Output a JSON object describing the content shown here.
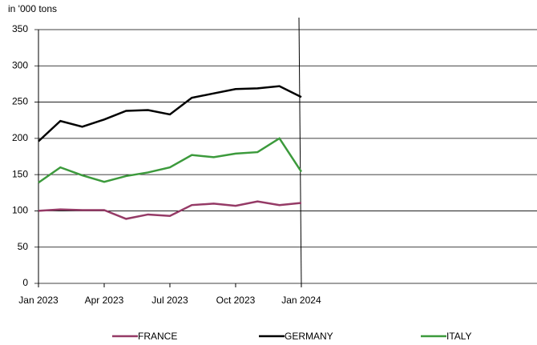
{
  "chart_data": {
    "type": "line",
    "y_label": "in '000 tons",
    "categories": [
      "Jan 2023",
      null,
      null,
      "Apr 2023",
      null,
      null,
      "Jul 2023",
      null,
      null,
      "Oct 2023",
      null,
      null,
      "Jan 2024"
    ],
    "series": [
      {
        "name": "FRANCE",
        "color": "#953a66",
        "values": [
          100,
          102,
          101,
          101,
          89,
          95,
          93,
          108,
          110,
          107,
          113,
          108,
          111
        ]
      },
      {
        "name": "GERMANY",
        "color": "#000000",
        "values": [
          196,
          224,
          216,
          226,
          238,
          239,
          233,
          256,
          262,
          268,
          269,
          272,
          257
        ]
      },
      {
        "name": "ITALY",
        "color": "#3c9a3c",
        "values": [
          139,
          160,
          149,
          140,
          148,
          153,
          160,
          177,
          174,
          179,
          181,
          200,
          154
        ]
      }
    ],
    "ylim": [
      0,
      350
    ],
    "yticks": [
      0,
      50,
      100,
      150,
      200,
      250,
      300,
      350
    ],
    "grid": true,
    "legend": "bottom"
  }
}
